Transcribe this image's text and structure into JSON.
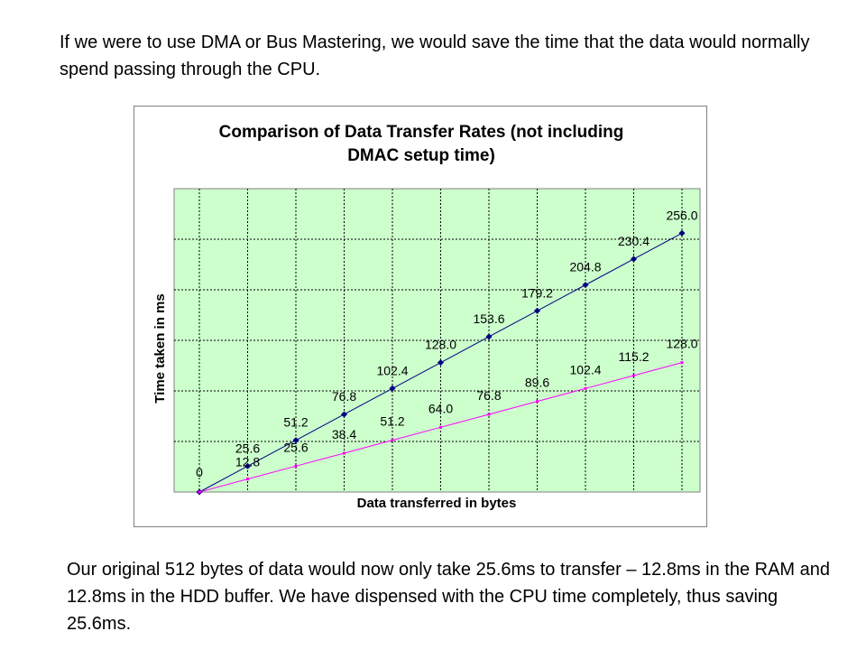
{
  "intro_text": "If we were to use DMA or Bus Mastering, we would save the time that the data would normally spend passing through the CPU.",
  "outro_text": "Our original 512 bytes of data would now only take 25.6ms to transfer – 12.8ms in the RAM and 12.8ms in the HDD buffer.  We have dispensed with the CPU time completely, thus saving 25.6ms.",
  "chart_data": {
    "type": "line",
    "title_lines": [
      "Comparison of Data Transfer Rates (not including",
      "DMAC setup time)"
    ],
    "xlabel": "Data transferred in bytes",
    "ylabel": "Time taken in ms",
    "x": [
      0,
      1,
      2,
      3,
      4,
      5,
      6,
      7,
      8,
      9,
      10
    ],
    "ylim": [
      0,
      300
    ],
    "grid": true,
    "legend": false,
    "plot_background": "#ccffcc",
    "series": [
      {
        "color": "#000080",
        "values": [
          0,
          25.6,
          51.2,
          76.8,
          102.4,
          128.0,
          153.6,
          179.2,
          204.8,
          230.4,
          256.0
        ],
        "labels": [
          "0",
          "25.6",
          "51.2",
          "76.8",
          "102.4",
          "128.0",
          "153.6",
          "179.2",
          "204.8",
          "230.4",
          "256.0"
        ]
      },
      {
        "color": "#ff00ff",
        "values": [
          0,
          12.8,
          25.6,
          38.4,
          51.2,
          64.0,
          76.8,
          89.6,
          102.4,
          115.2,
          128.0
        ],
        "labels": [
          "",
          "12.8",
          "25.6",
          "38.4",
          "51.2",
          "64.0",
          "76.8",
          "89.6",
          "102.4",
          "115.2",
          "128.0"
        ]
      }
    ]
  }
}
